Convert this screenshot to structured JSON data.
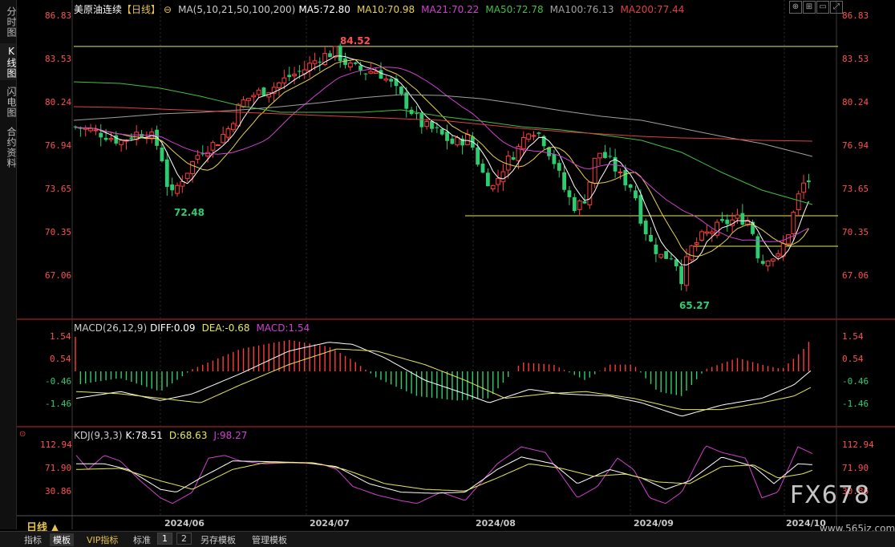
{
  "sidebar": {
    "tabs": [
      "分时图",
      "K线图",
      "闪电图",
      "合约资料"
    ],
    "active": 1
  },
  "header": {
    "symbol": "美原油连续",
    "period_tag": "【日线】",
    "ma_title": "MA(5,10,21,50,100,200)",
    "ma_values": [
      {
        "text": "MA5:72.80",
        "color": "#ffffff"
      },
      {
        "text": "MA10:70.98",
        "color": "#e8d24a"
      },
      {
        "text": "MA21:70.22",
        "color": "#d040d0"
      },
      {
        "text": "MA50:72.78",
        "color": "#40c040"
      },
      {
        "text": "MA100:76.13",
        "color": "#a0a0a0"
      },
      {
        "text": "MA200:77.44",
        "color": "#e04040"
      }
    ]
  },
  "macd_header": {
    "title": "MACD(26,12,9)",
    "diff": "DIFF:0.09",
    "dea": "DEA:-0.68",
    "macd": "MACD:1.54"
  },
  "kdj_header": {
    "title": "KDJ(9,3,3)",
    "k": "K:78.51",
    "d": "D:68.63",
    "j": "J:98.27"
  },
  "price_axis": [
    "86.83",
    "83.53",
    "80.24",
    "76.94",
    "73.65",
    "70.35",
    "67.06"
  ],
  "macd_axis": [
    "1.54",
    "0.54",
    "-0.46",
    "-1.46"
  ],
  "kdj_axis": [
    "112.94",
    "71.90",
    "30.86"
  ],
  "x_labels": [
    "2024/06",
    "2024/07",
    "2024/08",
    "2024/09",
    "2024/10"
  ],
  "annotations": {
    "high": "84.52",
    "low1": "72.48",
    "low2": "65.27"
  },
  "bottom": {
    "period": "日线 ▲",
    "items": [
      "指标",
      "模板",
      "VIP指标",
      "标准",
      "1",
      "2",
      "另存模板",
      "管理模板"
    ]
  },
  "watermark": {
    "brand": "FX678",
    "url": "www.565jz.com"
  },
  "colors": {
    "up": "#ff3b3b",
    "down": "#2ecc71",
    "axis_text": "#ff5050",
    "yellow": "#e8e85a"
  },
  "chart_data": {
    "type": "candlestick",
    "title": "美原油连续",
    "price_range": [
      65.27,
      86.83
    ],
    "x_range": [
      "2024/05",
      "2024/10"
    ],
    "high": 84.52,
    "lows": [
      72.48,
      65.27
    ],
    "macd": {
      "diff": 0.09,
      "dea": -0.68,
      "macd": 1.54,
      "range": [
        -1.46,
        1.54
      ]
    },
    "kdj": {
      "k": 78.51,
      "d": 68.63,
      "j": 98.27,
      "range": [
        30.86,
        112.94
      ]
    }
  }
}
